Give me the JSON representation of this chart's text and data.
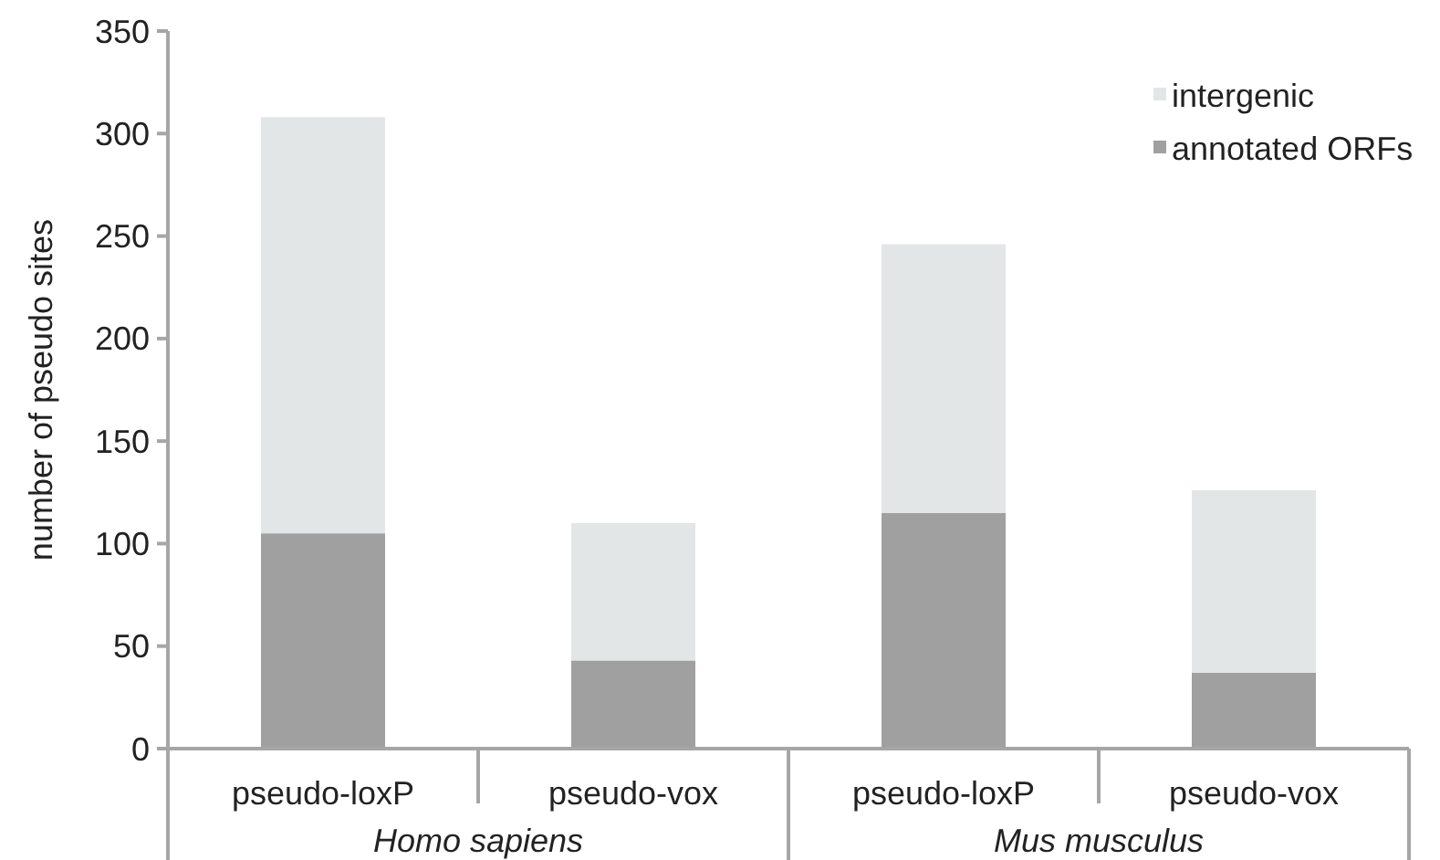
{
  "chart_data": {
    "type": "bar",
    "stacked": true,
    "ylabel": "number of pseudo sites",
    "categories": [
      "pseudo-loxP",
      "pseudo-vox",
      "pseudo-loxP",
      "pseudo-vox"
    ],
    "series": [
      {
        "name": "annotated ORFs",
        "color": "#a0a0a0",
        "values": [
          105,
          43,
          115,
          37
        ]
      },
      {
        "name": "intergenic",
        "color": "#e3e6e6",
        "values": [
          203,
          67,
          131,
          89
        ]
      }
    ],
    "ylim": [
      0,
      350
    ],
    "yticks": [
      0,
      50,
      100,
      150,
      200,
      250,
      300,
      350
    ],
    "legend": "top right",
    "grid": false,
    "annotations": [
      "Homo sapiens",
      "Mus musculus"
    ]
  }
}
